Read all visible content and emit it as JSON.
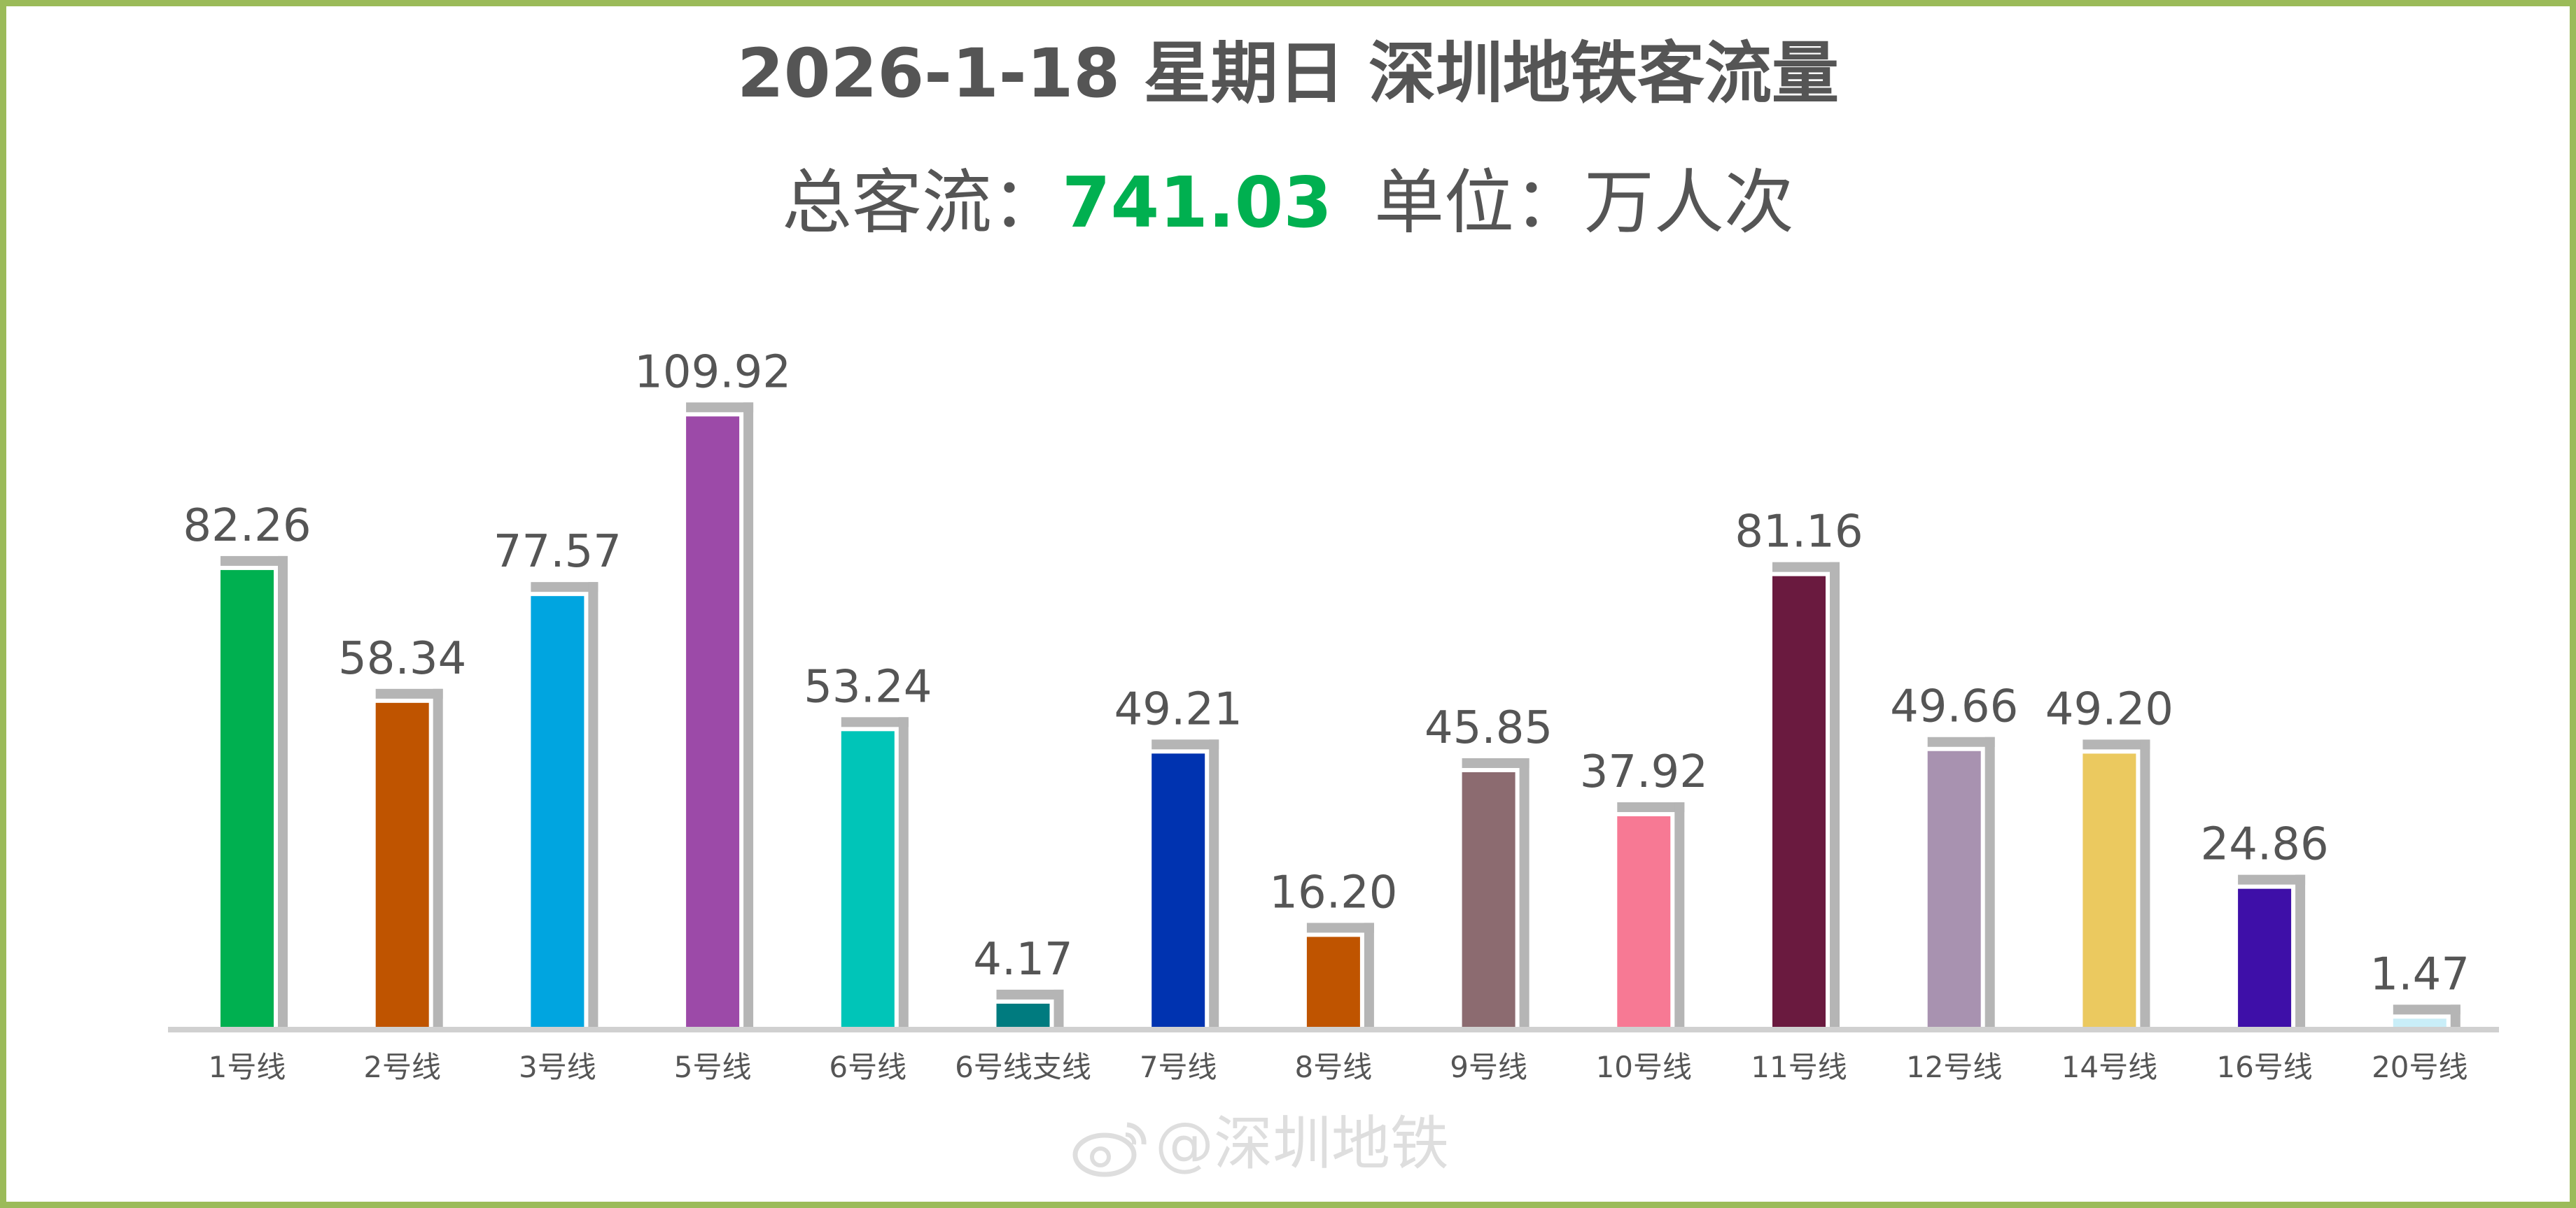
{
  "title": "2026-1-18 星期日  深圳地铁客流量",
  "subtitle": {
    "total_label": "总客流：",
    "total_value": "741.03",
    "unit_text": "单位：万人次"
  },
  "watermark": "@深圳地铁",
  "colors": {
    "frame_border": "#9bbb59",
    "total_value": "#00b050",
    "text": "#555555",
    "shadow": "#b5b5b5",
    "baseline": "#d0d0d0"
  },
  "chart_data": {
    "type": "bar",
    "categories": [
      "1号线",
      "2号线",
      "3号线",
      "5号线",
      "6号线",
      "6号线支线",
      "7号线",
      "8号线",
      "9号线",
      "10号线",
      "11号线",
      "12号线",
      "14号线",
      "16号线",
      "20号线"
    ],
    "values": [
      82.26,
      58.34,
      77.57,
      109.92,
      53.24,
      4.17,
      49.21,
      16.2,
      45.85,
      37.92,
      81.16,
      49.66,
      49.2,
      24.86,
      1.47
    ],
    "value_labels": [
      "82.26",
      "58.34",
      "77.57",
      "109.92",
      "53.24",
      "4.17",
      "49.21",
      "16.20",
      "45.85",
      "37.92",
      "81.16",
      "49.66",
      "49.20",
      "24.86",
      "1.47"
    ],
    "bar_colors": [
      "#00b050",
      "#bf5400",
      "#00a5e0",
      "#9c4aa8",
      "#00c5b8",
      "#007b7f",
      "#0033b0",
      "#bf5400",
      "#8c6b70",
      "#f77994",
      "#6a1a3f",
      "#a892b0",
      "#ebc95f",
      "#3e0fa8",
      "#c9eef8"
    ],
    "xlabel": "",
    "ylabel": "",
    "ylim": [
      0,
      115
    ],
    "grid": false,
    "legend": "none"
  }
}
